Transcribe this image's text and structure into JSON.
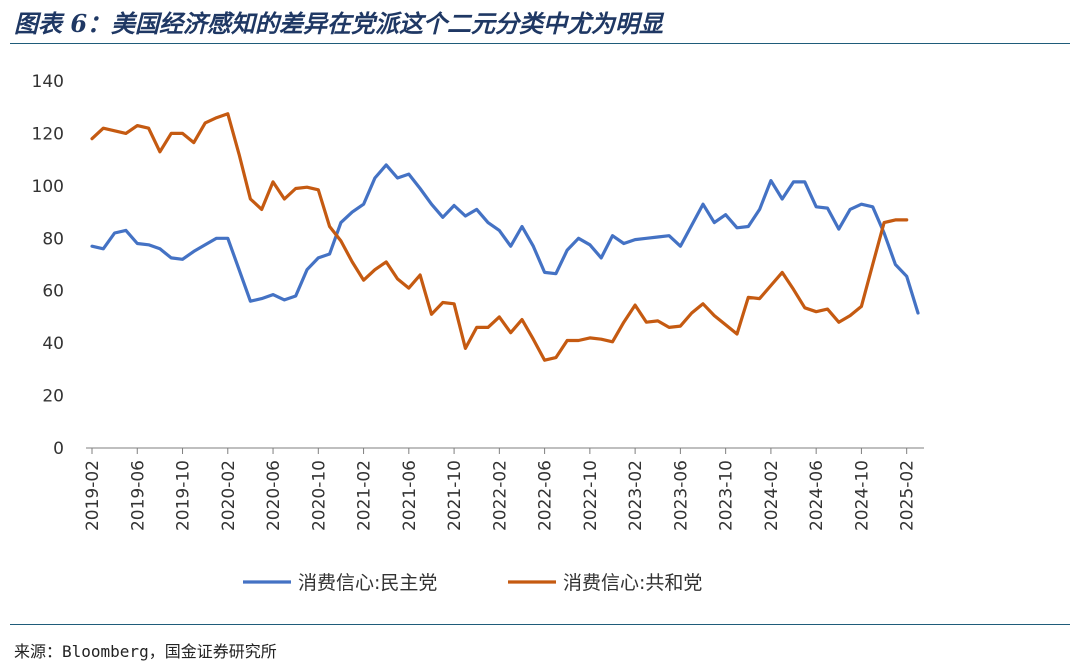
{
  "header": {
    "title": "图表 6：美国经济感知的差异在党派这个二元分类中尤为明显"
  },
  "footer": {
    "source": "来源：Bloomberg，国金证券研究所"
  },
  "colors": {
    "dem": "#4472c4",
    "rep": "#c55a11",
    "grid": "#d9d9d9",
    "axis": "#7f7f7f"
  },
  "chart_data": {
    "type": "line",
    "title": "",
    "xlabel": "",
    "ylabel": "",
    "ylim": [
      0,
      140
    ],
    "yticks": [
      0,
      20,
      40,
      60,
      80,
      100,
      120,
      140
    ],
    "grid": false,
    "legend_position": "bottom",
    "x_start": "2019-02",
    "xtick_labels": [
      "2019-02",
      "2019-06",
      "2019-10",
      "2020-02",
      "2020-06",
      "2020-10",
      "2021-02",
      "2021-06",
      "2021-10",
      "2022-02",
      "2022-06",
      "2022-10",
      "2023-02",
      "2023-06",
      "2023-10",
      "2024-02",
      "2024-06",
      "2024-10",
      "2025-02"
    ],
    "series": [
      {
        "name": "消费信心:民主党",
        "color": "#4472c4",
        "values": [
          77,
          76,
          82,
          83,
          78,
          77.5,
          76,
          72.5,
          72,
          75,
          77.5,
          80,
          80,
          68,
          56,
          57,
          58.5,
          56.5,
          58,
          68,
          72.5,
          74,
          86,
          90,
          93,
          103,
          108,
          103,
          104.5,
          99,
          93,
          88,
          92.5,
          88.5,
          91,
          86,
          83,
          77,
          84.5,
          77,
          67,
          66.5,
          75.5,
          80,
          77.5,
          72.5,
          81,
          78,
          79.5,
          80,
          80.5,
          81,
          77,
          85,
          93,
          86,
          89,
          84,
          84.5,
          91,
          102,
          95,
          101.5,
          101.5,
          92,
          91.5,
          83.5,
          91,
          93,
          92,
          82,
          70,
          65.5,
          51.5
        ]
      },
      {
        "name": "消费信心:共和党",
        "color": "#c55a11",
        "values": [
          118,
          122,
          121,
          120,
          123,
          122,
          113,
          120,
          120,
          116.5,
          124,
          126,
          127.5,
          112,
          95,
          91,
          101.5,
          95,
          99,
          99.5,
          98.5,
          84.5,
          79,
          71,
          64,
          68,
          71,
          64.5,
          61,
          66,
          51,
          55.5,
          55,
          38,
          46,
          46,
          50,
          44,
          49,
          41.5,
          33.5,
          34.5,
          41,
          41,
          42,
          41.5,
          40.5,
          48,
          54.5,
          48,
          48.5,
          46,
          46.5,
          51.5,
          55,
          50.5,
          47,
          43.5,
          57.5,
          57,
          62,
          67,
          60.5,
          53.5,
          52,
          53,
          48,
          50.5,
          54,
          70,
          86,
          87,
          87
        ]
      }
    ]
  }
}
